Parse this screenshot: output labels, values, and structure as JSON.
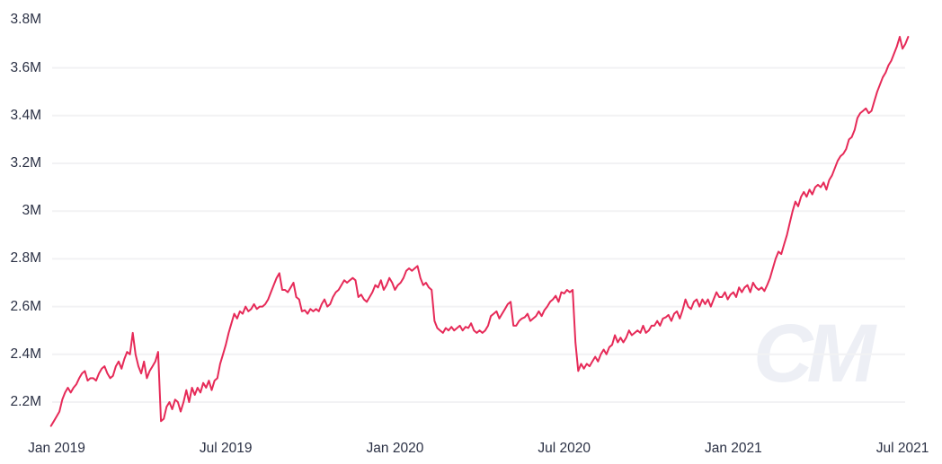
{
  "watermark": "CM",
  "colors": {
    "line": "#e62a58",
    "grid": "#f2f2f4",
    "label": "#2a3044",
    "background": "#ffffff",
    "watermark": "#edeff5"
  },
  "chart_data": {
    "type": "line",
    "title": "",
    "xlabel": "",
    "ylabel": "",
    "legend": "none",
    "grid": "horizontal-only",
    "x_axis": {
      "tick_labels": [
        "Jan 2019",
        "Jul 2019",
        "Jan 2020",
        "Jul 2020",
        "Jan 2021",
        "Jul 2021"
      ],
      "tick_months": [
        0,
        6,
        12,
        18,
        24,
        30
      ]
    },
    "y_axis": {
      "unit": "M",
      "tick_labels": [
        "2.2M",
        "2.4M",
        "2.6M",
        "2.8M",
        "3M",
        "3.2M",
        "3.4M",
        "3.6M",
        "3.8M"
      ],
      "tick_values": [
        2.2,
        2.4,
        2.6,
        2.8,
        3.0,
        3.2,
        3.4,
        3.6,
        3.8
      ],
      "gridline_values": [
        2.2,
        2.4,
        2.6,
        2.8,
        3.0,
        3.2,
        3.4,
        3.6
      ]
    },
    "xlim_months": [
      -0.2,
      30.2
    ],
    "ylim": [
      2.08,
      3.82
    ],
    "series": [
      {
        "name": "value-millions",
        "x_start_months": -0.2,
        "x_step_months": 0.1,
        "values": [
          2.1,
          2.12,
          2.14,
          2.16,
          2.21,
          2.24,
          2.26,
          2.24,
          2.26,
          2.275,
          2.3,
          2.32,
          2.33,
          2.29,
          2.3,
          2.3,
          2.29,
          2.32,
          2.34,
          2.35,
          2.32,
          2.3,
          2.31,
          2.35,
          2.37,
          2.34,
          2.38,
          2.41,
          2.4,
          2.49,
          2.4,
          2.35,
          2.32,
          2.37,
          2.3,
          2.33,
          2.35,
          2.37,
          2.41,
          2.12,
          2.13,
          2.18,
          2.2,
          2.17,
          2.21,
          2.2,
          2.16,
          2.2,
          2.25,
          2.2,
          2.26,
          2.23,
          2.26,
          2.24,
          2.28,
          2.26,
          2.29,
          2.25,
          2.29,
          2.3,
          2.36,
          2.4,
          2.44,
          2.49,
          2.53,
          2.57,
          2.55,
          2.58,
          2.57,
          2.6,
          2.58,
          2.59,
          2.61,
          2.59,
          2.6,
          2.6,
          2.61,
          2.63,
          2.66,
          2.69,
          2.72,
          2.74,
          2.67,
          2.67,
          2.66,
          2.68,
          2.7,
          2.64,
          2.63,
          2.58,
          2.585,
          2.57,
          2.59,
          2.58,
          2.59,
          2.58,
          2.61,
          2.63,
          2.6,
          2.61,
          2.64,
          2.66,
          2.67,
          2.69,
          2.71,
          2.7,
          2.71,
          2.72,
          2.71,
          2.64,
          2.65,
          2.63,
          2.62,
          2.64,
          2.66,
          2.69,
          2.68,
          2.71,
          2.67,
          2.69,
          2.72,
          2.7,
          2.67,
          2.69,
          2.7,
          2.72,
          2.75,
          2.76,
          2.75,
          2.76,
          2.77,
          2.72,
          2.69,
          2.7,
          2.68,
          2.67,
          2.54,
          2.51,
          2.5,
          2.49,
          2.51,
          2.5,
          2.515,
          2.5,
          2.51,
          2.52,
          2.5,
          2.515,
          2.51,
          2.53,
          2.5,
          2.49,
          2.5,
          2.49,
          2.5,
          2.52,
          2.56,
          2.57,
          2.58,
          2.55,
          2.57,
          2.59,
          2.61,
          2.62,
          2.52,
          2.52,
          2.54,
          2.55,
          2.555,
          2.57,
          2.54,
          2.55,
          2.56,
          2.58,
          2.56,
          2.585,
          2.6,
          2.62,
          2.63,
          2.645,
          2.62,
          2.66,
          2.655,
          2.67,
          2.66,
          2.67,
          2.45,
          2.33,
          2.36,
          2.34,
          2.36,
          2.35,
          2.37,
          2.39,
          2.37,
          2.4,
          2.42,
          2.4,
          2.43,
          2.44,
          2.48,
          2.45,
          2.47,
          2.45,
          2.47,
          2.5,
          2.48,
          2.49,
          2.5,
          2.49,
          2.52,
          2.49,
          2.5,
          2.52,
          2.52,
          2.54,
          2.52,
          2.55,
          2.555,
          2.565,
          2.54,
          2.57,
          2.58,
          2.55,
          2.585,
          2.63,
          2.6,
          2.59,
          2.62,
          2.63,
          2.6,
          2.63,
          2.61,
          2.63,
          2.6,
          2.63,
          2.66,
          2.64,
          2.64,
          2.66,
          2.63,
          2.65,
          2.66,
          2.64,
          2.68,
          2.66,
          2.68,
          2.69,
          2.66,
          2.7,
          2.68,
          2.67,
          2.68,
          2.665,
          2.69,
          2.72,
          2.76,
          2.8,
          2.83,
          2.82,
          2.86,
          2.9,
          2.95,
          3.0,
          3.04,
          3.02,
          3.06,
          3.08,
          3.06,
          3.09,
          3.07,
          3.1,
          3.11,
          3.1,
          3.12,
          3.09,
          3.13,
          3.15,
          3.18,
          3.21,
          3.23,
          3.24,
          3.26,
          3.3,
          3.31,
          3.34,
          3.39,
          3.41,
          3.42,
          3.43,
          3.41,
          3.42,
          3.46,
          3.5,
          3.53,
          3.56,
          3.58,
          3.61,
          3.63,
          3.66,
          3.69,
          3.73,
          3.68,
          3.7,
          3.73
        ]
      }
    ]
  }
}
